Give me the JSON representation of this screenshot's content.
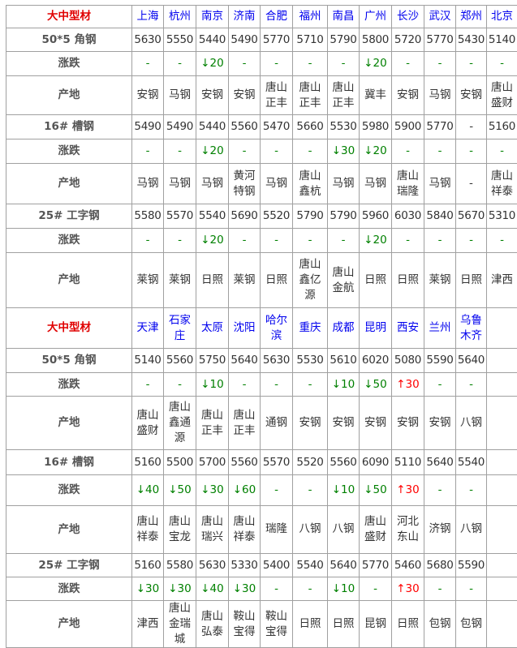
{
  "colors": {
    "corner": "#e00000",
    "city": "#0000ee",
    "down": "#008000",
    "up": "#ff0000"
  },
  "sections": [
    {
      "corner": "大中型材",
      "cities": [
        "上海",
        "杭州",
        "南京",
        "济南",
        "合肥",
        "福州",
        "南昌",
        "广州",
        "长沙",
        "武汉",
        "郑州",
        "北京"
      ],
      "products": [
        {
          "name": "50*5 角钢",
          "change_label": "涨跌",
          "origin_label": "产地",
          "prices": [
            "5630",
            "5550",
            "5440",
            "5490",
            "5770",
            "5710",
            "5790",
            "5800",
            "5720",
            "5770",
            "5430",
            "5140"
          ],
          "changes": [
            "-",
            "-",
            "↓20",
            "-",
            "-",
            "-",
            "-",
            "↓20",
            "-",
            "-",
            "-",
            "-"
          ],
          "origins": [
            "安钢",
            "马钢",
            "安钢",
            "安钢",
            "唐山正丰",
            "唐山正丰",
            "唐山正丰",
            "冀丰",
            "安钢",
            "马钢",
            "安钢",
            "唐山盛财"
          ]
        },
        {
          "name": "16# 槽钢",
          "change_label": "涨跌",
          "origin_label": "产地",
          "prices": [
            "5490",
            "5490",
            "5440",
            "5560",
            "5470",
            "5660",
            "5530",
            "5980",
            "5900",
            "5770",
            "-",
            "5160"
          ],
          "changes": [
            "-",
            "-",
            "↓20",
            "-",
            "-",
            "-",
            "↓30",
            "↓20",
            "-",
            "-",
            "-",
            "-"
          ],
          "origins": [
            "马钢",
            "马钢",
            "马钢",
            "黄河特钢",
            "马钢",
            "唐山鑫杭",
            "马钢",
            "马钢",
            "唐山瑞隆",
            "马钢",
            "-",
            "唐山祥泰"
          ]
        },
        {
          "name": "25# 工字钢",
          "change_label": "涨跌",
          "origin_label": "产地",
          "prices": [
            "5580",
            "5570",
            "5540",
            "5690",
            "5520",
            "5790",
            "5790",
            "5960",
            "6030",
            "5840",
            "5670",
            "5310"
          ],
          "changes": [
            "-",
            "-",
            "↓20",
            "-",
            "-",
            "-",
            "-",
            "↓20",
            "-",
            "-",
            "-",
            "-"
          ],
          "origins": [
            "莱钢",
            "莱钢",
            "日照",
            "莱钢",
            "日照",
            "唐山鑫亿源",
            "唐山金航",
            "日照",
            "日照",
            "莱钢",
            "日照",
            "津西"
          ]
        }
      ]
    },
    {
      "corner": "大中型材",
      "cities": [
        "天津",
        "石家庄",
        "太原",
        "沈阳",
        "哈尔滨",
        "重庆",
        "成都",
        "昆明",
        "西安",
        "兰州",
        "乌鲁木齐",
        ""
      ],
      "products": [
        {
          "name": "50*5 角钢",
          "change_label": "涨跌",
          "origin_label": "产地",
          "prices": [
            "5140",
            "5560",
            "5750",
            "5640",
            "5630",
            "5530",
            "5610",
            "6020",
            "5080",
            "5590",
            "5640",
            ""
          ],
          "changes": [
            "-",
            "-",
            "↓10",
            "-",
            "-",
            "-",
            "↓10",
            "↓50",
            "↑30",
            "-",
            "-",
            ""
          ],
          "origins": [
            "唐山盛财",
            "唐山鑫通源",
            "唐山正丰",
            "唐山正丰",
            "通钢",
            "安钢",
            "安钢",
            "安钢",
            "安钢",
            "安钢",
            "八钢",
            ""
          ]
        },
        {
          "name": "16# 槽钢",
          "change_label": "涨跌",
          "origin_label": "产地",
          "prices": [
            "5160",
            "5500",
            "5700",
            "5560",
            "5570",
            "5520",
            "5560",
            "6090",
            "5110",
            "5640",
            "5540",
            ""
          ],
          "changes": [
            "↓40",
            "↓50",
            "↓30",
            "↓60",
            "-",
            "-",
            "↓10",
            "↓50",
            "↑30",
            "-",
            "-",
            ""
          ],
          "origins": [
            "唐山祥泰",
            "唐山宝龙",
            "唐山瑞兴",
            "唐山祥泰",
            "瑞隆",
            "八钢",
            "八钢",
            "唐山盛财",
            "河北东山",
            "济钢",
            "八钢",
            ""
          ]
        },
        {
          "name": "25# 工字钢",
          "change_label": "涨跌",
          "origin_label": "产地",
          "prices": [
            "5160",
            "5580",
            "5630",
            "5330",
            "5400",
            "5540",
            "5640",
            "5770",
            "5460",
            "5680",
            "5590",
            ""
          ],
          "changes": [
            "↓30",
            "↓30",
            "↓40",
            "↓30",
            "-",
            "-",
            "↓10",
            "-",
            "↑30",
            "-",
            "-",
            ""
          ],
          "origins": [
            "津西",
            "唐山金瑞城",
            "唐山弘泰",
            "鞍山宝得",
            "鞍山宝得",
            "日照",
            "日照",
            "昆钢",
            "日照",
            "包钢",
            "包钢",
            ""
          ]
        }
      ]
    }
  ]
}
